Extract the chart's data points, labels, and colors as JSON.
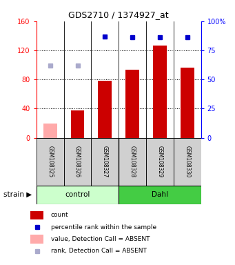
{
  "title": "GDS2710 / 1374927_at",
  "samples": [
    "GSM108325",
    "GSM108326",
    "GSM108327",
    "GSM108328",
    "GSM108329",
    "GSM108330"
  ],
  "count_values": [
    20,
    38,
    78,
    93,
    127,
    96
  ],
  "percentile_values": [
    62,
    62,
    87,
    86,
    86,
    86
  ],
  "bar_absent_mask": [
    true,
    false,
    false,
    false,
    false,
    false
  ],
  "dot_absent_mask": [
    true,
    true,
    false,
    false,
    false,
    false
  ],
  "ylim_left": [
    0,
    160
  ],
  "ylim_right": [
    0,
    100
  ],
  "yticks_left": [
    0,
    40,
    80,
    120,
    160
  ],
  "yticks_right": [
    0,
    25,
    50,
    75,
    100
  ],
  "yticklabels_right": [
    "0",
    "25",
    "50",
    "75",
    "100%"
  ],
  "bar_color_present": "#cc0000",
  "bar_color_absent": "#ffaaaa",
  "dot_color_present": "#0000cc",
  "dot_color_absent": "#aaaacc",
  "control_label": "control",
  "dahl_label": "Dahl",
  "control_bg": "#ccffcc",
  "dahl_bg": "#44cc44",
  "legend_items": [
    {
      "color": "#cc0000",
      "label": "count",
      "type": "bar"
    },
    {
      "color": "#0000cc",
      "label": "percentile rank within the sample",
      "type": "dot"
    },
    {
      "color": "#ffaaaa",
      "label": "value, Detection Call = ABSENT",
      "type": "bar"
    },
    {
      "color": "#aaaacc",
      "label": "rank, Detection Call = ABSENT",
      "type": "dot"
    }
  ],
  "bg_color": "#ffffff",
  "sample_bg": "#d0d0d0",
  "bar_width": 0.5
}
